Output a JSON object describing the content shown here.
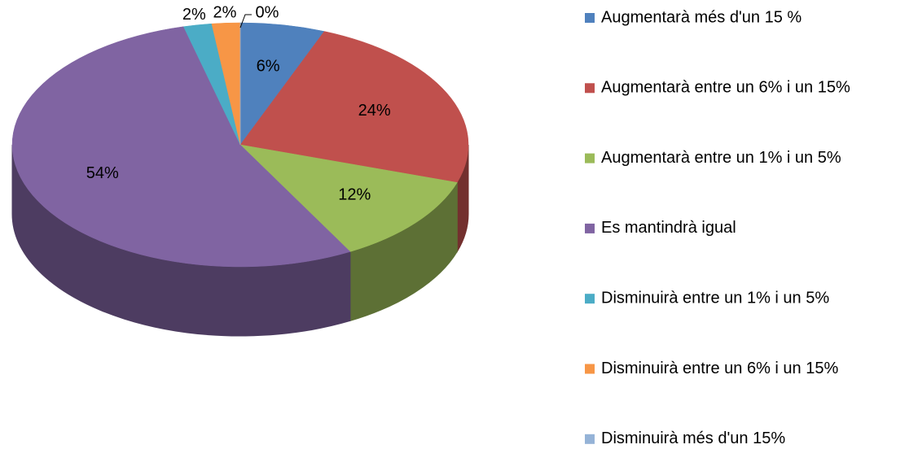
{
  "chart_data": {
    "type": "pie3d",
    "categories": [
      "Augmentarà més d'un 15 %",
      "Augmentarà entre un 6% i un 15%",
      "Augmentarà entre un 1% i un 5%",
      "Es mantindrà igual",
      "Disminuirà entre un 1% i un 5%",
      "Disminuirà entre un 6% i un 15%",
      "Disminuirà més d'un 15%"
    ],
    "values": [
      6,
      24,
      12,
      54,
      2,
      2,
      0
    ],
    "value_labels": [
      "6%",
      "24%",
      "12%",
      "54%",
      "2%",
      "2%",
      "0%"
    ],
    "colors": [
      "#4f81bd",
      "#c0504d",
      "#9bbb59",
      "#8064a2",
      "#4bacc6",
      "#f79646",
      "#95b3d7"
    ],
    "legend": "right"
  }
}
